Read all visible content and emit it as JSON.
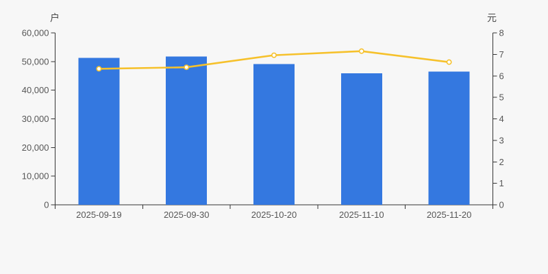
{
  "chart_data": {
    "type": "combo",
    "categories": [
      "2025-09-19",
      "2025-09-30",
      "2025-10-20",
      "2025-11-10",
      "2025-11-20"
    ],
    "series": [
      {
        "type": "bar",
        "axis": "left",
        "color": "#3478e0",
        "values": [
          51300,
          51700,
          49150,
          45950,
          46500
        ]
      },
      {
        "type": "line",
        "axis": "right",
        "color": "#f6c12b",
        "marker": "circle",
        "marker_fill": "#ffffff",
        "values": [
          6.33,
          6.4,
          6.96,
          7.15,
          6.64
        ]
      }
    ],
    "left_axis": {
      "name": "户",
      "min": 0,
      "max": 60000,
      "interval": 10000,
      "tick_labels": [
        "0",
        "10,000",
        "20,000",
        "30,000",
        "40,000",
        "50,000",
        "60,000"
      ]
    },
    "right_axis": {
      "name": "元",
      "min": 0,
      "max": 8,
      "interval": 1,
      "tick_labels": [
        "0",
        "1",
        "2",
        "3",
        "4",
        "5",
        "6",
        "7",
        "8"
      ]
    },
    "x_axis": {
      "tick_labels": [
        "2025-09-19",
        "2025-09-30",
        "2025-10-20",
        "2025-11-10",
        "2025-11-20"
      ]
    },
    "legend": false,
    "grid_lines": false,
    "colors": {
      "background": "#f7f7f7",
      "axis_line": "#333333",
      "tick_label": "#565656",
      "axis_name": "#4a4a4a",
      "bar": "#3478e0",
      "line": "#f6c12b"
    }
  }
}
